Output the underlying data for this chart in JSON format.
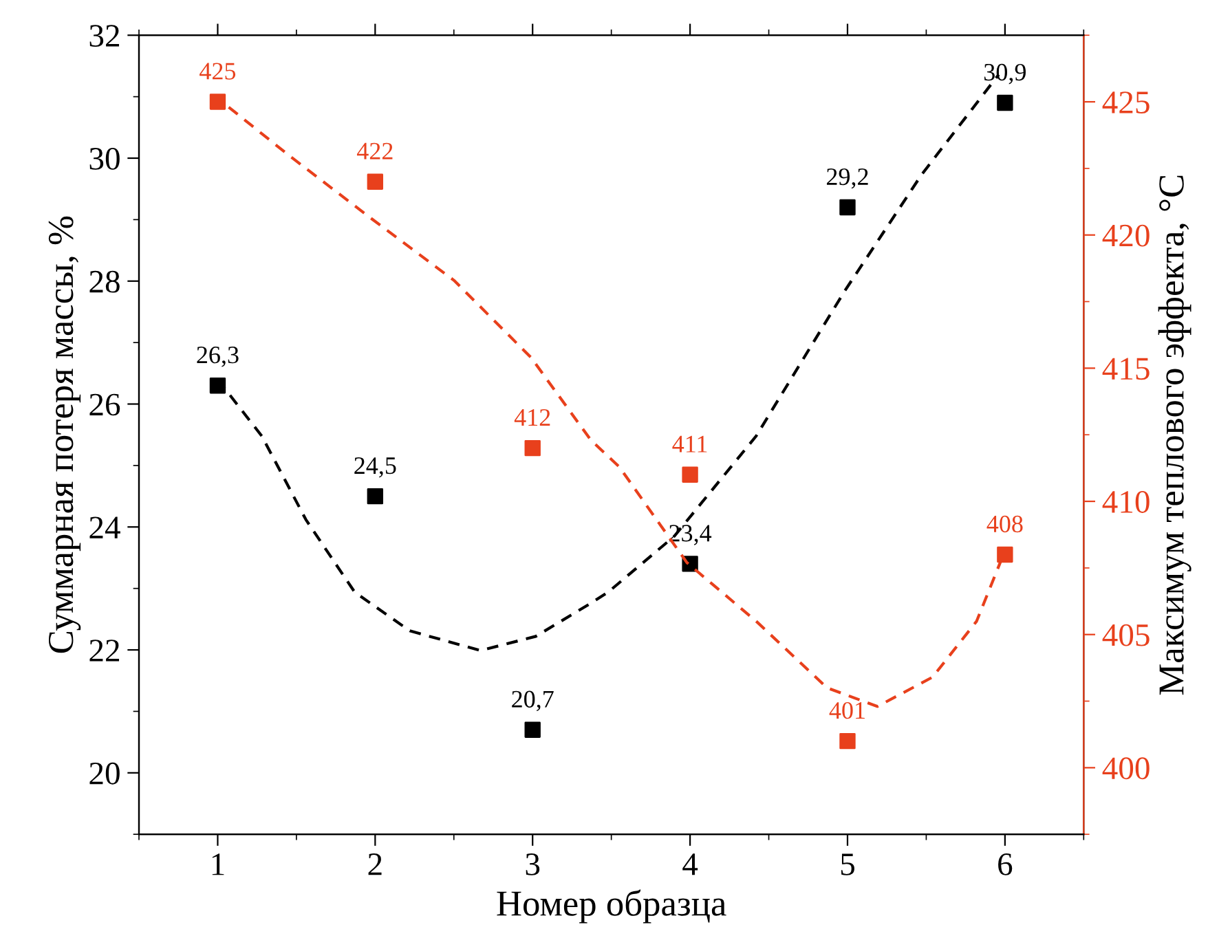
{
  "chart_data": {
    "type": "scatter",
    "xlabel": "Номер образца",
    "ylabel": "Суммарная потеря массы, %",
    "y2label": "Максимум теплового эффекта, °C",
    "x": [
      1,
      2,
      3,
      4,
      5,
      6
    ],
    "xlim": [
      0.5,
      6.5
    ],
    "xticks": [
      1,
      2,
      3,
      4,
      5,
      6
    ],
    "ylim": [
      19,
      32
    ],
    "yticks": [
      20,
      22,
      24,
      26,
      28,
      30,
      32
    ],
    "y2lim": [
      397.5,
      427.5
    ],
    "y2ticks": [
      400,
      405,
      410,
      415,
      420,
      425
    ],
    "grid": false,
    "legend": false,
    "marker": "square",
    "series": [
      {
        "axis": "y",
        "color": "#000000",
        "values": [
          26.3,
          24.5,
          20.7,
          23.4,
          29.2,
          30.9
        ],
        "value_labels": [
          "26,3",
          "24,5",
          "20,7",
          "23,4",
          "29,2",
          "30,9"
        ]
      },
      {
        "axis": "y2",
        "color": "#e8401c",
        "values": [
          425,
          422,
          412,
          411,
          401,
          408
        ],
        "value_labels": [
          "425",
          "422",
          "412",
          "411",
          "401",
          "408"
        ]
      },
      {
        "type": "line",
        "axis": "y",
        "color": "#000000",
        "marker": "none",
        "line_style": "dashed",
        "x": [
          1.0,
          1.28,
          1.56,
          1.87,
          2.22,
          2.67,
          3.02,
          3.37,
          3.48,
          3.9,
          4.42,
          4.98,
          5.47,
          5.96
        ],
        "values": [
          26.4,
          25.48,
          24.12,
          22.94,
          22.31,
          21.99,
          22.22,
          22.76,
          22.94,
          23.85,
          25.48,
          27.83,
          29.73,
          31.36
        ]
      },
      {
        "type": "line",
        "axis": "y2",
        "color": "#e8401c",
        "marker": "none",
        "line_style": "dashed",
        "x": [
          1.07,
          1.45,
          1.98,
          2.5,
          2.99,
          3.37,
          3.55,
          3.98,
          4.42,
          4.87,
          5.19,
          5.54,
          5.82,
          5.99
        ],
        "values": [
          424.8,
          423.0,
          420.6,
          418.3,
          415.4,
          412.3,
          411.3,
          407.7,
          405.5,
          403.0,
          402.3,
          403.4,
          405.5,
          408.0
        ]
      }
    ]
  }
}
